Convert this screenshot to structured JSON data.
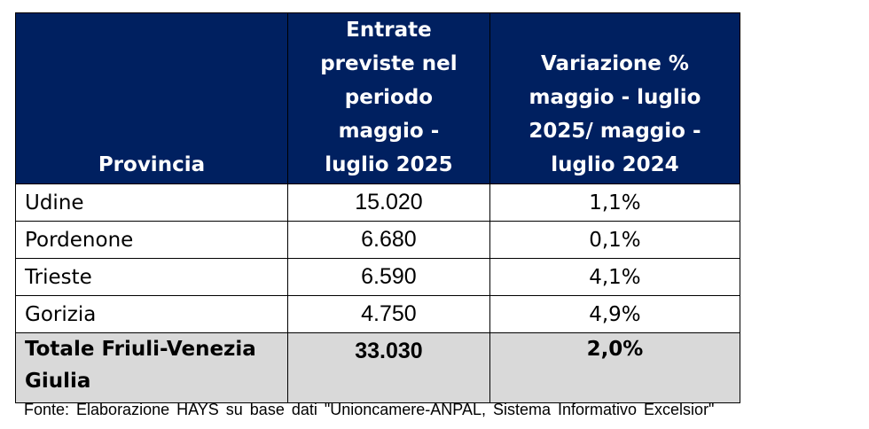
{
  "table": {
    "headers": {
      "provincia": "Provincia",
      "entrate": "Entrate previste nel periodo maggio - luglio 2025",
      "variazione": "Variazione % maggio - luglio 2025/ maggio - luglio 2024"
    },
    "rows": [
      {
        "provincia": "Udine",
        "entrate": "15.020",
        "variazione": "1,1%"
      },
      {
        "provincia": "Pordenone",
        "entrate": "6.680",
        "variazione": "0,1%"
      },
      {
        "provincia": "Trieste",
        "entrate": "6.590",
        "variazione": "4,1%"
      },
      {
        "provincia": "Gorizia",
        "entrate": "4.750",
        "variazione": "4,9%"
      }
    ],
    "total": {
      "provincia": "Totale Friuli-Venezia Giulia",
      "entrate": "33.030",
      "variazione": "2,0%"
    }
  },
  "source": "Fonte: Elaborazione HAYS su base dati \"Unioncamere-ANPAL, Sistema Informativo Excelsior\"",
  "colors": {
    "header_bg": "#002060",
    "total_bg": "#d9d9d9"
  }
}
